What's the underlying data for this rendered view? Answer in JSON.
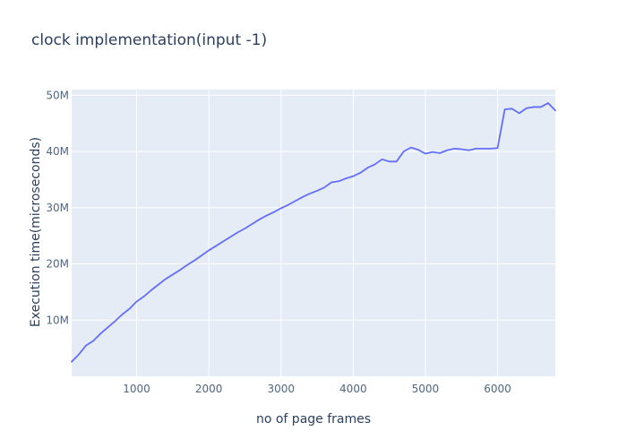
{
  "chart_data": {
    "type": "line",
    "title": "clock implementation(input -1)",
    "xlabel": "no of page frames",
    "ylabel": "Execution time(microseconds)",
    "xlim": [
      100,
      6800
    ],
    "ylim": [
      0,
      51000000
    ],
    "grid": true,
    "legend": "none",
    "colors": {
      "plot_bg": "#E5ECF6",
      "grid": "#FFFFFF",
      "line": "#636EFA",
      "text": "#2A3F5F",
      "tick_text": "#506784"
    },
    "x_ticks": [
      {
        "value": 1000,
        "label": "1000"
      },
      {
        "value": 2000,
        "label": "2000"
      },
      {
        "value": 3000,
        "label": "3000"
      },
      {
        "value": 4000,
        "label": "4000"
      },
      {
        "value": 5000,
        "label": "5000"
      },
      {
        "value": 6000,
        "label": "6000"
      }
    ],
    "y_ticks": [
      {
        "value": 10000000,
        "label": "10M"
      },
      {
        "value": 20000000,
        "label": "20M"
      },
      {
        "value": 30000000,
        "label": "30M"
      },
      {
        "value": 40000000,
        "label": "40M"
      },
      {
        "value": 50000000,
        "label": "50M"
      }
    ],
    "series": [
      {
        "x": [
          100,
          200,
          300,
          400,
          500,
          600,
          700,
          800,
          900,
          1000,
          1100,
          1200,
          1300,
          1400,
          1500,
          1600,
          1700,
          1800,
          1900,
          2000,
          2100,
          2200,
          2300,
          2400,
          2500,
          2600,
          2700,
          2800,
          2900,
          3000,
          3100,
          3200,
          3300,
          3400,
          3500,
          3600,
          3700,
          3800,
          3900,
          4000,
          4100,
          4200,
          4300,
          4400,
          4500,
          4600,
          4700,
          4800,
          4900,
          5000,
          5100,
          5200,
          5300,
          5400,
          5500,
          5600,
          5700,
          5800,
          5900,
          6000,
          6100,
          6200,
          6300,
          6400,
          6500,
          6600,
          6700,
          6800
        ],
        "y": [
          2600000,
          3900000,
          5500000,
          6300000,
          7600000,
          8700000,
          9800000,
          11000000,
          12000000,
          13300000,
          14200000,
          15300000,
          16300000,
          17300000,
          18100000,
          18900000,
          19800000,
          20600000,
          21500000,
          22400000,
          23200000,
          24000000,
          24800000,
          25600000,
          26300000,
          27100000,
          27900000,
          28600000,
          29200000,
          29900000,
          30500000,
          31200000,
          31900000,
          32500000,
          33000000,
          33600000,
          34500000,
          34700000,
          35200000,
          35600000,
          36200000,
          37100000,
          37700000,
          38600000,
          38200000,
          38200000,
          40000000,
          40700000,
          40300000,
          39600000,
          39900000,
          39700000,
          40200000,
          40500000,
          40400000,
          40200000,
          40500000,
          40500000,
          40500000,
          40600000,
          47500000,
          47600000,
          46800000,
          47700000,
          47900000,
          47900000,
          48600000,
          47300000
        ]
      }
    ]
  }
}
